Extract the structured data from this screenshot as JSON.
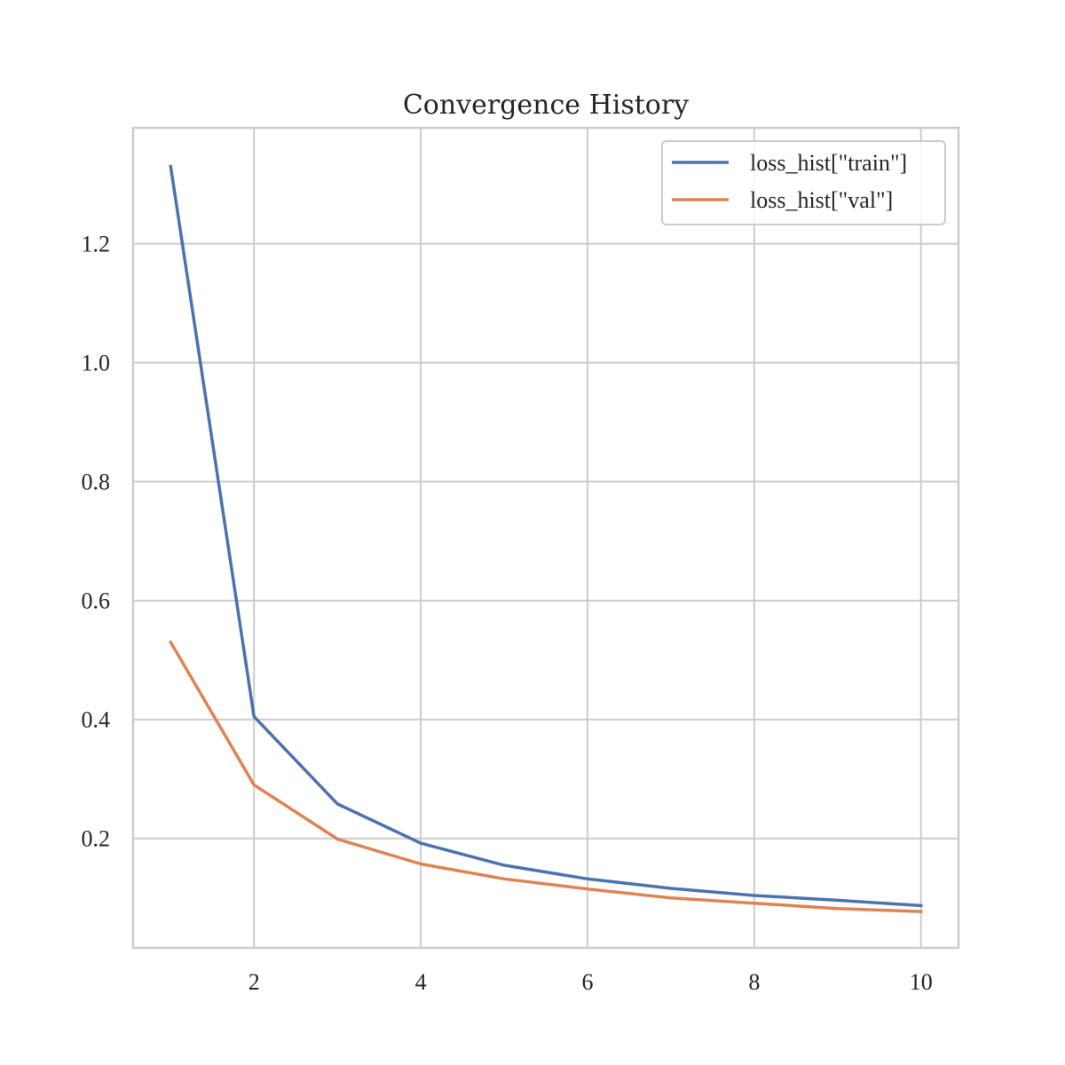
{
  "chart_data": {
    "type": "line",
    "title": "Convergence History",
    "xlabel": "",
    "ylabel": "",
    "x": [
      1,
      2,
      3,
      4,
      5,
      6,
      7,
      8,
      9,
      10
    ],
    "series": [
      {
        "name": "loss_hist[\"train\"]",
        "color": "#4c72b0",
        "values": [
          1.33,
          0.405,
          0.258,
          0.192,
          0.155,
          0.132,
          0.116,
          0.104,
          0.096,
          0.087
        ]
      },
      {
        "name": "loss_hist[\"val\"]",
        "color": "#dd8452",
        "values": [
          0.53,
          0.29,
          0.199,
          0.157,
          0.132,
          0.115,
          0.1,
          0.091,
          0.082,
          0.077
        ]
      }
    ],
    "xlim": [
      0.55,
      10.45
    ],
    "ylim": [
      0.016,
      1.395
    ],
    "xticks": [
      2,
      4,
      6,
      8,
      10
    ],
    "xtick_labels": [
      "2",
      "4",
      "6",
      "8",
      "10"
    ],
    "yticks": [
      0.2,
      0.4,
      0.6,
      0.8,
      1.0,
      1.2
    ],
    "ytick_labels": [
      "0.2",
      "0.4",
      "0.6",
      "0.8",
      "1.0",
      "1.2"
    ],
    "grid": true,
    "legend_position": "top-right"
  }
}
